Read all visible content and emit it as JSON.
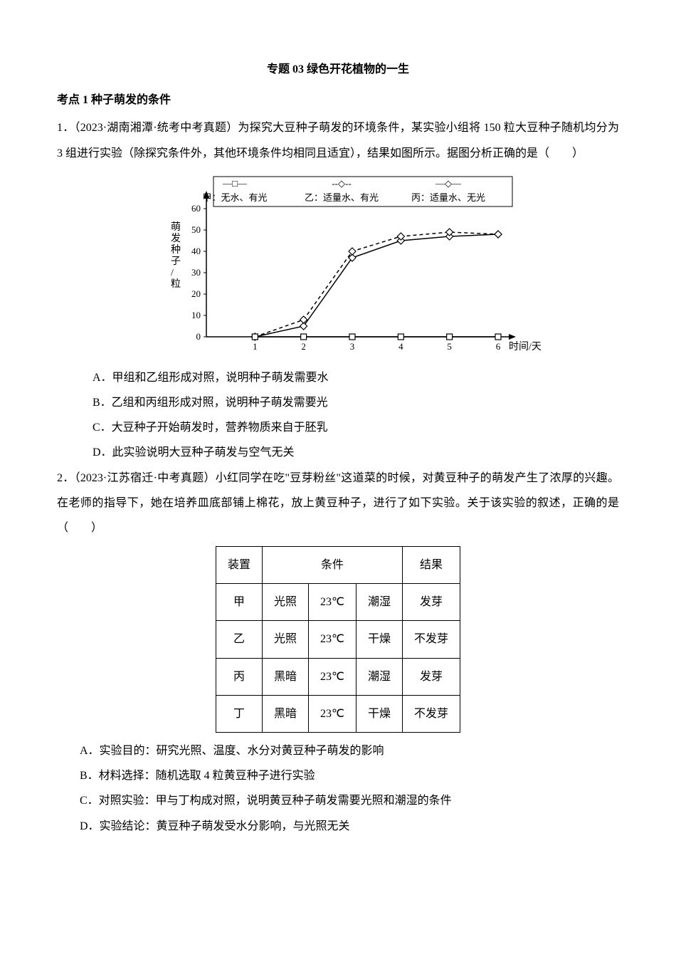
{
  "title": "专题 03  绿色开花植物的一生",
  "heading1": "考点 1 种子萌发的条件",
  "q1": {
    "text": "1．（2023·湖南湘潭·统考中考真题）为探究大豆种子萌发的环境条件，某实验小组将 150 粒大豆种子随机均分为 3 组进行实验（除探究条件外，其他环境条件均相同且适宜），结果如图所示。据图分析正确的是（　　）",
    "options": {
      "A": "A．甲组和乙组形成对照，说明种子萌发需要水",
      "B": "B．乙组和丙组形成对照，说明种子萌发需要光",
      "C": "C．大豆种子开始萌发时，营养物质来自于胚乳",
      "D": "D．此实验说明大豆种子萌发与空气无关"
    }
  },
  "chart": {
    "ylabel": "萌发种子/粒",
    "xlabel": "时间/天",
    "ymax": 60,
    "xmax": 6,
    "ytick_step": 10,
    "legend": {
      "jia": "甲：无水、有光",
      "yi": "乙：适量水、有光",
      "bing": "丙：适量水、无光"
    },
    "legend_marker_jia": "—□—",
    "legend_marker_yi": "--◇--",
    "legend_marker_bing": "—◇—",
    "series_jia": [
      {
        "x": 1,
        "y": 0
      },
      {
        "x": 2,
        "y": 0
      },
      {
        "x": 3,
        "y": 0
      },
      {
        "x": 4,
        "y": 0
      },
      {
        "x": 5,
        "y": 0
      },
      {
        "x": 6,
        "y": 0
      }
    ],
    "series_yi": [
      {
        "x": 1,
        "y": 0
      },
      {
        "x": 2,
        "y": 8
      },
      {
        "x": 3,
        "y": 40
      },
      {
        "x": 4,
        "y": 47
      },
      {
        "x": 5,
        "y": 49
      },
      {
        "x": 6,
        "y": 48
      }
    ],
    "series_bing": [
      {
        "x": 1,
        "y": 0
      },
      {
        "x": 2,
        "y": 5
      },
      {
        "x": 3,
        "y": 37
      },
      {
        "x": 4,
        "y": 45
      },
      {
        "x": 5,
        "y": 47
      },
      {
        "x": 6,
        "y": 48
      }
    ],
    "axis_color": "#000000",
    "grid_color": "#000000",
    "line_color": "#000000",
    "background": "#ffffff"
  },
  "q2": {
    "text": "2．（2023·江苏宿迁·中考真题）小红同学在吃\"豆芽粉丝\"这道菜的时候，对黄豆种子的萌发产生了浓厚的兴趣。在老师的指导下，她在培养皿底部铺上棉花，放上黄豆种子，进行了如下实验。关于该实验的叙述，正确的是（　　）",
    "options": {
      "A": "A．实验目的：研究光照、温度、水分对黄豆种子萌发的影响",
      "B": "B．材料选择：随机选取 4 粒黄豆种子进行实验",
      "C": "C．对照实验：甲与丁构成对照，说明黄豆种子萌发需要光照和潮湿的条件",
      "D": "D．实验结论：黄豆种子萌发受水分影响，与光照无关"
    }
  },
  "table": {
    "headers": [
      "装置",
      "条件",
      "结果"
    ],
    "col_condition_span": 3,
    "rows": [
      [
        "甲",
        "光照",
        "23℃",
        "潮湿",
        "发芽"
      ],
      [
        "乙",
        "光照",
        "23℃",
        "干燥",
        "不发芽"
      ],
      [
        "丙",
        "黑暗",
        "23℃",
        "潮湿",
        "发芽"
      ],
      [
        "丁",
        "黑暗",
        "23℃",
        "干燥",
        "不发芽"
      ]
    ]
  }
}
